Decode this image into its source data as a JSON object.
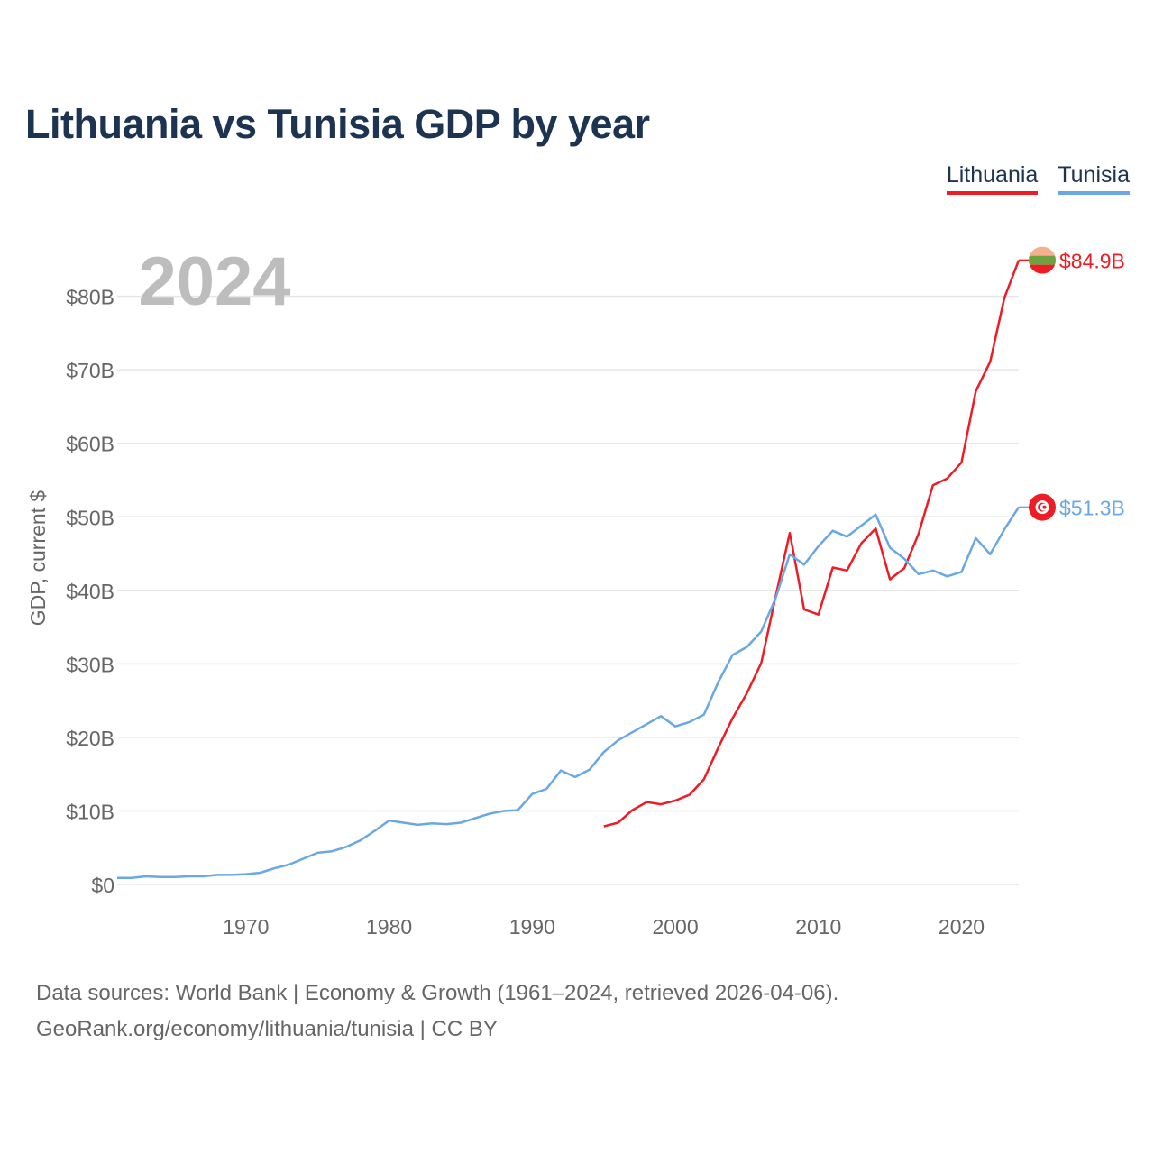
{
  "title": "Lithuania vs Tunisia GDP by year",
  "legend": {
    "lithuania": "Lithuania",
    "tunisia": "Tunisia"
  },
  "footer": {
    "line1": "Data sources: World Bank | Economy & Growth (1961–2024, retrieved 2026-04-06).",
    "line2": "GeoRank.org/economy/lithuania/tunisia | CC BY"
  },
  "colors": {
    "lithuania": "#ee1c25",
    "tunisia": "#6aa8e3",
    "year": "#bdbdbd",
    "axis_text": "#666666",
    "grid": "#e6e6e6"
  },
  "chart_data": {
    "type": "line",
    "title": "Lithuania vs Tunisia GDP by year",
    "year_label": "2024",
    "xlabel": "",
    "ylabel": "GDP, current $",
    "xlim": [
      1961,
      2024
    ],
    "ylim": [
      0,
      85
    ],
    "x_ticks": [
      1970,
      1980,
      1990,
      2000,
      2010,
      2020
    ],
    "y_ticks": [
      {
        "value": 0,
        "label": "$0"
      },
      {
        "value": 10,
        "label": "$10B"
      },
      {
        "value": 20,
        "label": "$20B"
      },
      {
        "value": 30,
        "label": "$30B"
      },
      {
        "value": 40,
        "label": "$40B"
      },
      {
        "value": 50,
        "label": "$50B"
      },
      {
        "value": 60,
        "label": "$60B"
      },
      {
        "value": 70,
        "label": "$70B"
      },
      {
        "value": 80,
        "label": "$80B"
      }
    ],
    "grid": true,
    "legend_position": "top-right",
    "series": [
      {
        "name": "Lithuania",
        "color": "#ee1c25",
        "end_label": "$84.9B",
        "x": [
          1995,
          1996,
          1997,
          1998,
          1999,
          2000,
          2001,
          2002,
          2003,
          2004,
          2005,
          2006,
          2007,
          2008,
          2009,
          2010,
          2011,
          2012,
          2013,
          2014,
          2015,
          2016,
          2017,
          2018,
          2019,
          2020,
          2021,
          2022,
          2023,
          2024
        ],
        "values": [
          7.9,
          8.4,
          10.1,
          11.2,
          10.9,
          11.4,
          12.2,
          14.3,
          18.6,
          22.6,
          26.0,
          30.1,
          39.1,
          47.8,
          37.4,
          36.7,
          43.1,
          42.7,
          46.4,
          48.4,
          41.5,
          43.0,
          47.7,
          54.3,
          55.2,
          57.4,
          67.1,
          71.1,
          79.8,
          84.9
        ]
      },
      {
        "name": "Tunisia",
        "color": "#6aa8e3",
        "end_label": "$51.3B",
        "x": [
          1961,
          1962,
          1963,
          1964,
          1965,
          1966,
          1967,
          1968,
          1969,
          1970,
          1971,
          1972,
          1973,
          1974,
          1975,
          1976,
          1977,
          1978,
          1979,
          1980,
          1981,
          1982,
          1983,
          1984,
          1985,
          1986,
          1987,
          1988,
          1989,
          1990,
          1991,
          1992,
          1993,
          1994,
          1995,
          1996,
          1997,
          1998,
          1999,
          2000,
          2001,
          2002,
          2003,
          2004,
          2005,
          2006,
          2007,
          2008,
          2009,
          2010,
          2011,
          2012,
          2013,
          2014,
          2015,
          2016,
          2017,
          2018,
          2019,
          2020,
          2021,
          2022,
          2023,
          2024
        ],
        "values": [
          0.9,
          0.9,
          1.1,
          1.0,
          1.0,
          1.1,
          1.1,
          1.3,
          1.3,
          1.4,
          1.6,
          2.2,
          2.7,
          3.5,
          4.3,
          4.5,
          5.1,
          6.0,
          7.3,
          8.7,
          8.4,
          8.1,
          8.3,
          8.2,
          8.4,
          9.0,
          9.6,
          10.0,
          10.1,
          12.3,
          13.0,
          15.5,
          14.6,
          15.6,
          18.0,
          19.6,
          20.7,
          21.8,
          22.9,
          21.5,
          22.1,
          23.1,
          27.5,
          31.2,
          32.3,
          34.4,
          38.9,
          44.9,
          43.5,
          46.0,
          48.1,
          47.3,
          48.8,
          50.3,
          45.8,
          44.3,
          42.2,
          42.7,
          41.9,
          42.5,
          47.1,
          44.9,
          48.3,
          51.3
        ]
      }
    ]
  }
}
